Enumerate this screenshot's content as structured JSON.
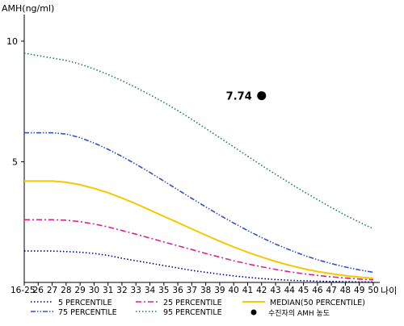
{
  "chart_data": {
    "type": "line",
    "ylabel": "AMH(ng/ml)",
    "xlabel": "나이",
    "ylim": [
      0,
      11
    ],
    "y_ticks": [
      5,
      10
    ],
    "grid": false,
    "legend_position": "bottom",
    "categories": [
      "16-25",
      "26",
      "27",
      "28",
      "29",
      "30",
      "31",
      "32",
      "33",
      "34",
      "35",
      "36",
      "37",
      "38",
      "39",
      "40",
      "41",
      "42",
      "43",
      "44",
      "45",
      "46",
      "47",
      "48",
      "49",
      "50"
    ],
    "series": [
      {
        "name": "5 PERCENTILE",
        "color": "#000080",
        "dash": "dot",
        "values": [
          1.3,
          1.3,
          1.3,
          1.28,
          1.25,
          1.2,
          1.12,
          1.0,
          0.9,
          0.8,
          0.7,
          0.6,
          0.5,
          0.42,
          0.34,
          0.27,
          0.21,
          0.16,
          0.12,
          0.09,
          0.07,
          0.05,
          0.04,
          0.03,
          0.02,
          0.02
        ]
      },
      {
        "name": "25 PERCENTILE",
        "color": "#e0208a",
        "dash": "dashdot",
        "values": [
          2.6,
          2.6,
          2.6,
          2.58,
          2.52,
          2.42,
          2.3,
          2.15,
          2.0,
          1.84,
          1.68,
          1.52,
          1.36,
          1.2,
          1.05,
          0.9,
          0.77,
          0.65,
          0.54,
          0.44,
          0.36,
          0.29,
          0.23,
          0.18,
          0.14,
          0.11
        ]
      },
      {
        "name": "MEDIAN(50 PERCENTILE)",
        "color": "#f5c800",
        "dash": "solid",
        "values": [
          4.2,
          4.2,
          4.2,
          4.15,
          4.05,
          3.9,
          3.72,
          3.5,
          3.26,
          3.0,
          2.74,
          2.48,
          2.22,
          1.96,
          1.71,
          1.47,
          1.25,
          1.05,
          0.87,
          0.71,
          0.57,
          0.45,
          0.36,
          0.28,
          0.22,
          0.17
        ]
      },
      {
        "name": "75 PERCENTILE",
        "color": "#3050c8",
        "dash": "dashdotdot",
        "values": [
          6.2,
          6.2,
          6.2,
          6.15,
          6.0,
          5.78,
          5.52,
          5.22,
          4.9,
          4.56,
          4.2,
          3.84,
          3.48,
          3.13,
          2.79,
          2.46,
          2.15,
          1.86,
          1.59,
          1.35,
          1.13,
          0.94,
          0.78,
          0.64,
          0.52,
          0.42
        ]
      },
      {
        "name": "95 PERCENTILE",
        "color": "#208050",
        "dash": "dot",
        "values": [
          9.5,
          9.4,
          9.3,
          9.2,
          9.05,
          8.85,
          8.62,
          8.36,
          8.08,
          7.78,
          7.46,
          7.12,
          6.76,
          6.38,
          6.0,
          5.62,
          5.23,
          4.85,
          4.48,
          4.12,
          3.77,
          3.43,
          3.1,
          2.79,
          2.5,
          2.22
        ]
      }
    ],
    "marker": {
      "category": "42",
      "value": 7.74,
      "label": "7.74",
      "legend": "수진자의 AMH 농도"
    }
  }
}
